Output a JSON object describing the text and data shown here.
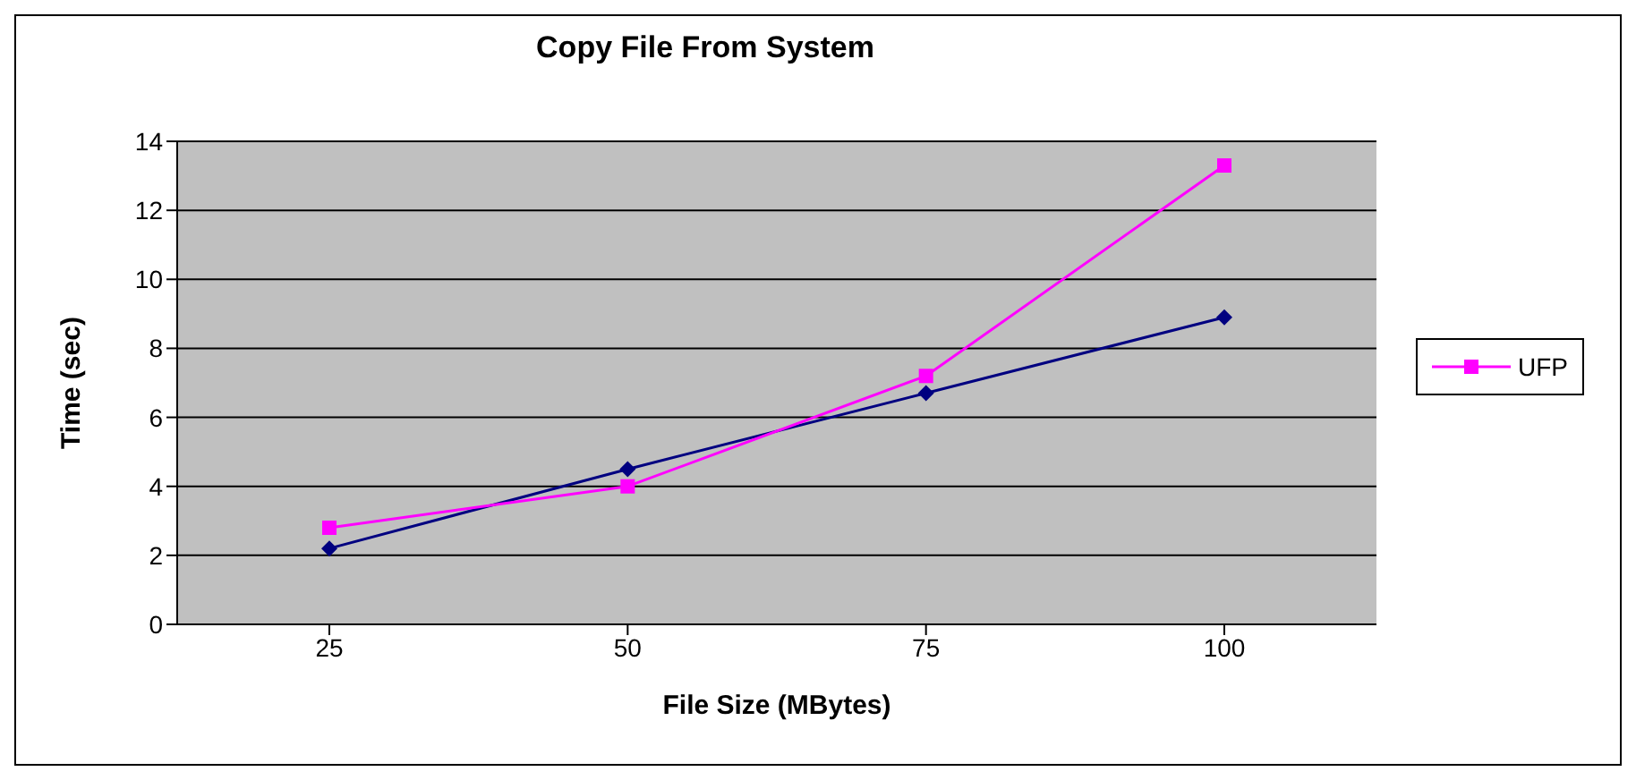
{
  "chart_data": {
    "type": "line",
    "title": "Copy File From System",
    "xlabel": "File Size (MBytes)",
    "ylabel": "Time (sec)",
    "categories": [
      "25",
      "50",
      "75",
      "100"
    ],
    "series": [
      {
        "color": "#000080",
        "marker": "diamond",
        "values": [
          2.2,
          4.5,
          6.7,
          8.9
        ]
      },
      {
        "name": "UFP",
        "color": "#ff00ff",
        "marker": "square",
        "values": [
          2.8,
          4.0,
          7.2,
          13.3
        ]
      }
    ],
    "ylim": [
      0,
      14
    ],
    "yticks": [
      0,
      2,
      4,
      6,
      8,
      10,
      12,
      14
    ],
    "grid": "y",
    "legend": "right"
  }
}
